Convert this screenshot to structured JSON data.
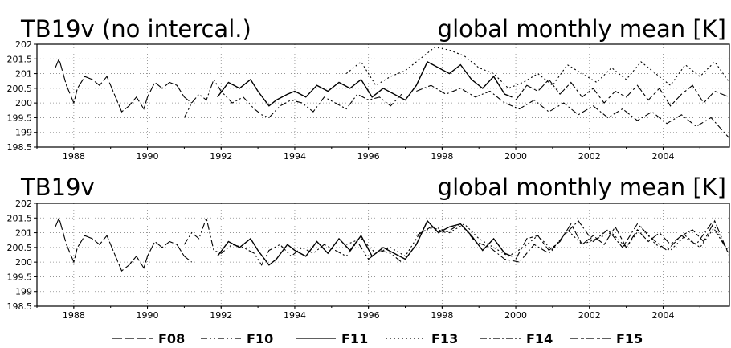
{
  "chart_data": [
    {
      "type": "line",
      "title_left": "TB19v (no intercal.)",
      "title_right": "global monthly mean [K]",
      "ylim": [
        198.5,
        202
      ],
      "yticks": [
        198.5,
        199,
        199.5,
        200,
        200.5,
        201,
        201.5,
        202
      ],
      "ytick_labels": [
        "198.5",
        "199",
        "199.5",
        "200",
        "200.5",
        "201",
        "201.5",
        "202"
      ],
      "xlim": [
        1987.0,
        2005.8
      ],
      "xticks": [
        1988,
        1990,
        1992,
        1994,
        1996,
        1998,
        2000,
        2002,
        2004
      ],
      "xtick_labels": [
        "1988",
        "1990",
        "1992",
        "1994",
        "1996",
        "1998",
        "2000",
        "2002",
        "2004"
      ],
      "grid": true,
      "series": [
        {
          "name": "F08",
          "x": [
            1987.5,
            1987.6,
            1987.8,
            1988.0,
            1988.1,
            1988.3,
            1988.5,
            1988.7,
            1988.9,
            1989.1,
            1989.3,
            1989.5,
            1989.7,
            1989.9,
            1990.0,
            1990.2,
            1990.4,
            1990.6,
            1990.8,
            1991.0,
            1991.2
          ],
          "y": [
            201.2,
            201.5,
            200.6,
            200.0,
            200.5,
            200.9,
            200.8,
            200.6,
            200.9,
            200.3,
            199.7,
            199.9,
            200.2,
            199.8,
            200.2,
            200.7,
            200.5,
            200.7,
            200.6,
            200.2,
            200.0
          ]
        },
        {
          "name": "F10",
          "x": [
            1991.0,
            1991.2,
            1991.4,
            1991.6,
            1991.8,
            1992.0,
            1992.3,
            1992.6,
            1992.9,
            1993.1,
            1993.3,
            1993.6,
            1993.9,
            1994.2,
            1994.5,
            1994.8,
            1995.1,
            1995.4,
            1995.7,
            1996.0,
            1996.3,
            1996.6,
            1996.9
          ],
          "y": [
            199.5,
            200.0,
            200.3,
            200.1,
            200.8,
            200.4,
            200.0,
            200.2,
            199.8,
            199.6,
            199.5,
            199.9,
            200.1,
            200.0,
            199.7,
            200.2,
            200.0,
            199.8,
            200.3,
            200.1,
            200.2,
            199.9,
            200.3
          ]
        },
        {
          "name": "F11",
          "x": [
            1991.9,
            1992.2,
            1992.5,
            1992.8,
            1993.0,
            1993.3,
            1993.5,
            1993.8,
            1994.0,
            1994.3,
            1994.6,
            1994.9,
            1995.2,
            1995.5,
            1995.8,
            1996.1,
            1996.4,
            1996.7,
            1997.0,
            1997.3,
            1997.6,
            1997.9,
            1998.2,
            1998.5,
            1998.8,
            1999.1,
            1999.4,
            1999.7,
            1999.9
          ],
          "y": [
            200.2,
            200.7,
            200.5,
            200.8,
            200.4,
            199.9,
            200.1,
            200.3,
            200.4,
            200.2,
            200.6,
            200.4,
            200.7,
            200.5,
            200.8,
            200.2,
            200.5,
            200.3,
            200.1,
            200.6,
            201.4,
            201.2,
            201.0,
            201.3,
            200.8,
            200.5,
            200.9,
            200.3,
            200.2
          ]
        },
        {
          "name": "F13",
          "x": [
            1995.4,
            1995.8,
            1996.2,
            1996.6,
            1997.0,
            1997.4,
            1997.8,
            1998.2,
            1998.6,
            1999.0,
            1999.4,
            1999.8,
            2000.2,
            2000.6,
            2001.0,
            2001.4,
            2001.8,
            2002.2,
            2002.6,
            2003.0,
            2003.4,
            2003.8,
            2004.2,
            2004.6,
            2005.0,
            2005.4,
            2005.8
          ],
          "y": [
            201.0,
            201.4,
            200.6,
            200.9,
            201.1,
            201.5,
            201.9,
            201.8,
            201.6,
            201.2,
            201.0,
            200.5,
            200.7,
            201.0,
            200.6,
            201.3,
            201.0,
            200.7,
            201.2,
            200.8,
            201.4,
            201.0,
            200.6,
            201.3,
            200.9,
            201.4,
            200.7
          ]
        },
        {
          "name": "F14",
          "x": [
            1997.3,
            1997.7,
            1998.1,
            1998.5,
            1998.9,
            1999.3,
            1999.7,
            2000.1,
            2000.5,
            2000.9,
            2001.3,
            2001.7,
            2002.1,
            2002.5,
            2002.9,
            2003.3,
            2003.7,
            2004.1,
            2004.5,
            2004.9,
            2005.3,
            2005.8
          ],
          "y": [
            200.4,
            200.6,
            200.3,
            200.5,
            200.2,
            200.4,
            200.0,
            199.8,
            200.1,
            199.7,
            200.0,
            199.6,
            199.9,
            199.5,
            199.8,
            199.4,
            199.7,
            199.3,
            199.6,
            199.2,
            199.5,
            198.8
          ]
        },
        {
          "name": "F15",
          "x": [
            2000.0,
            2000.3,
            2000.6,
            2000.9,
            2001.2,
            2001.5,
            2001.8,
            2002.1,
            2002.4,
            2002.7,
            2003.0,
            2003.3,
            2003.6,
            2003.9,
            2004.2,
            2004.5,
            2004.8,
            2005.1,
            2005.4,
            2005.8
          ],
          "y": [
            200.1,
            200.6,
            200.4,
            200.8,
            200.3,
            200.7,
            200.2,
            200.5,
            200.0,
            200.4,
            200.2,
            200.6,
            200.1,
            200.5,
            199.9,
            200.3,
            200.6,
            200.0,
            200.4,
            200.2
          ]
        }
      ]
    },
    {
      "type": "line",
      "title_left": "TB19v",
      "title_right": "global monthly mean [K]",
      "ylim": [
        198.5,
        202
      ],
      "yticks": [
        198.5,
        199,
        199.5,
        200,
        200.5,
        201,
        201.5,
        202
      ],
      "ytick_labels": [
        "198.5",
        "199",
        "199.5",
        "200",
        "200.5",
        "201",
        "201.5",
        "202"
      ],
      "xlim": [
        1987.0,
        2005.8
      ],
      "xticks": [
        1988,
        1990,
        1992,
        1994,
        1996,
        1998,
        2000,
        2002,
        2004
      ],
      "xtick_labels": [
        "1988",
        "1990",
        "1992",
        "1994",
        "1996",
        "1998",
        "2000",
        "2002",
        "2004"
      ],
      "grid": true,
      "series": [
        {
          "name": "F08",
          "x": [
            1987.5,
            1987.6,
            1987.8,
            1988.0,
            1988.1,
            1988.3,
            1988.5,
            1988.7,
            1988.9,
            1989.1,
            1989.3,
            1989.5,
            1989.7,
            1989.9,
            1990.0,
            1990.2,
            1990.4,
            1990.6,
            1990.8,
            1991.0,
            1991.2
          ],
          "y": [
            201.2,
            201.5,
            200.6,
            200.0,
            200.5,
            200.9,
            200.8,
            200.6,
            200.9,
            200.3,
            199.7,
            199.9,
            200.2,
            199.8,
            200.2,
            200.7,
            200.5,
            200.7,
            200.6,
            200.2,
            200.0
          ]
        },
        {
          "name": "F10",
          "x": [
            1991.0,
            1991.2,
            1991.4,
            1991.6,
            1991.8,
            1992.0,
            1992.3,
            1992.6,
            1992.9,
            1993.1,
            1993.3,
            1993.6,
            1993.9,
            1994.2,
            1994.5,
            1994.8,
            1995.1,
            1995.4,
            1995.7,
            1996.0,
            1996.3,
            1996.6,
            1996.9
          ],
          "y": [
            200.6,
            201.0,
            200.8,
            201.5,
            200.4,
            200.3,
            200.6,
            200.5,
            200.3,
            199.9,
            200.4,
            200.6,
            200.2,
            200.5,
            200.3,
            200.6,
            200.4,
            200.2,
            200.7,
            200.1,
            200.4,
            200.3,
            200.0
          ]
        },
        {
          "name": "F11",
          "x": [
            1991.9,
            1992.2,
            1992.5,
            1992.8,
            1993.0,
            1993.3,
            1993.5,
            1993.8,
            1994.0,
            1994.3,
            1994.6,
            1994.9,
            1995.2,
            1995.5,
            1995.8,
            1996.1,
            1996.4,
            1996.7,
            1997.0,
            1997.3,
            1997.6,
            1997.9,
            1998.2,
            1998.5,
            1998.8,
            1999.1,
            1999.4,
            1999.7,
            1999.9
          ],
          "y": [
            200.2,
            200.7,
            200.5,
            200.8,
            200.4,
            199.9,
            200.1,
            200.6,
            200.4,
            200.2,
            200.7,
            200.3,
            200.8,
            200.4,
            200.9,
            200.2,
            200.5,
            200.3,
            200.1,
            200.6,
            201.4,
            201.0,
            201.2,
            201.3,
            200.9,
            200.4,
            200.8,
            200.3,
            200.2
          ]
        },
        {
          "name": "F13",
          "x": [
            1995.4,
            1995.8,
            1996.2,
            1996.6,
            1997.0,
            1997.4,
            1997.8,
            1998.2,
            1998.6,
            1999.0,
            1999.4,
            1999.8,
            2000.2,
            2000.6,
            2001.0,
            2001.4,
            2001.8,
            2002.2,
            2002.6,
            2003.0,
            2003.4,
            2003.8,
            2004.2,
            2004.6,
            2005.0,
            2005.4,
            2005.8
          ],
          "y": [
            200.6,
            200.8,
            200.3,
            200.5,
            200.2,
            201.0,
            201.2,
            201.0,
            201.3,
            200.8,
            200.5,
            200.2,
            200.5,
            200.9,
            200.4,
            201.1,
            200.6,
            200.8,
            201.0,
            200.5,
            201.2,
            200.6,
            200.4,
            200.9,
            200.5,
            201.2,
            200.3
          ]
        },
        {
          "name": "F14",
          "x": [
            1997.3,
            1997.7,
            1998.1,
            1998.5,
            1998.9,
            1999.3,
            1999.7,
            2000.1,
            2000.5,
            2000.9,
            2001.3,
            2001.7,
            2002.1,
            2002.5,
            2002.9,
            2003.3,
            2003.7,
            2004.1,
            2004.5,
            2004.9,
            2005.3,
            2005.8
          ],
          "y": [
            200.9,
            201.2,
            201.0,
            201.3,
            200.7,
            200.5,
            200.1,
            200.0,
            200.6,
            200.3,
            200.9,
            201.4,
            200.7,
            201.1,
            200.5,
            201.3,
            200.8,
            200.4,
            200.9,
            200.6,
            201.3,
            200.3
          ]
        },
        {
          "name": "F15",
          "x": [
            2000.0,
            2000.3,
            2000.6,
            2000.9,
            2001.2,
            2001.5,
            2001.8,
            2002.1,
            2002.4,
            2002.7,
            2003.0,
            2003.3,
            2003.6,
            2003.9,
            2004.2,
            2004.5,
            2004.8,
            2005.1,
            2005.4,
            2005.8
          ],
          "y": [
            200.1,
            200.8,
            200.9,
            200.4,
            200.7,
            201.3,
            200.6,
            200.9,
            200.6,
            201.2,
            200.5,
            201.1,
            200.7,
            201.0,
            200.6,
            200.9,
            201.1,
            200.7,
            201.4,
            200.2
          ]
        }
      ]
    }
  ],
  "legend": [
    {
      "name": "F08",
      "dash": "12,3"
    },
    {
      "name": "F10",
      "dash": "8,3,2,3,2,3"
    },
    {
      "name": "F11",
      "dash": "none"
    },
    {
      "name": "F13",
      "dash": "2,3"
    },
    {
      "name": "F14",
      "dash": "8,3,2,3"
    },
    {
      "name": "F15",
      "dash": "10,3,4,3"
    }
  ]
}
